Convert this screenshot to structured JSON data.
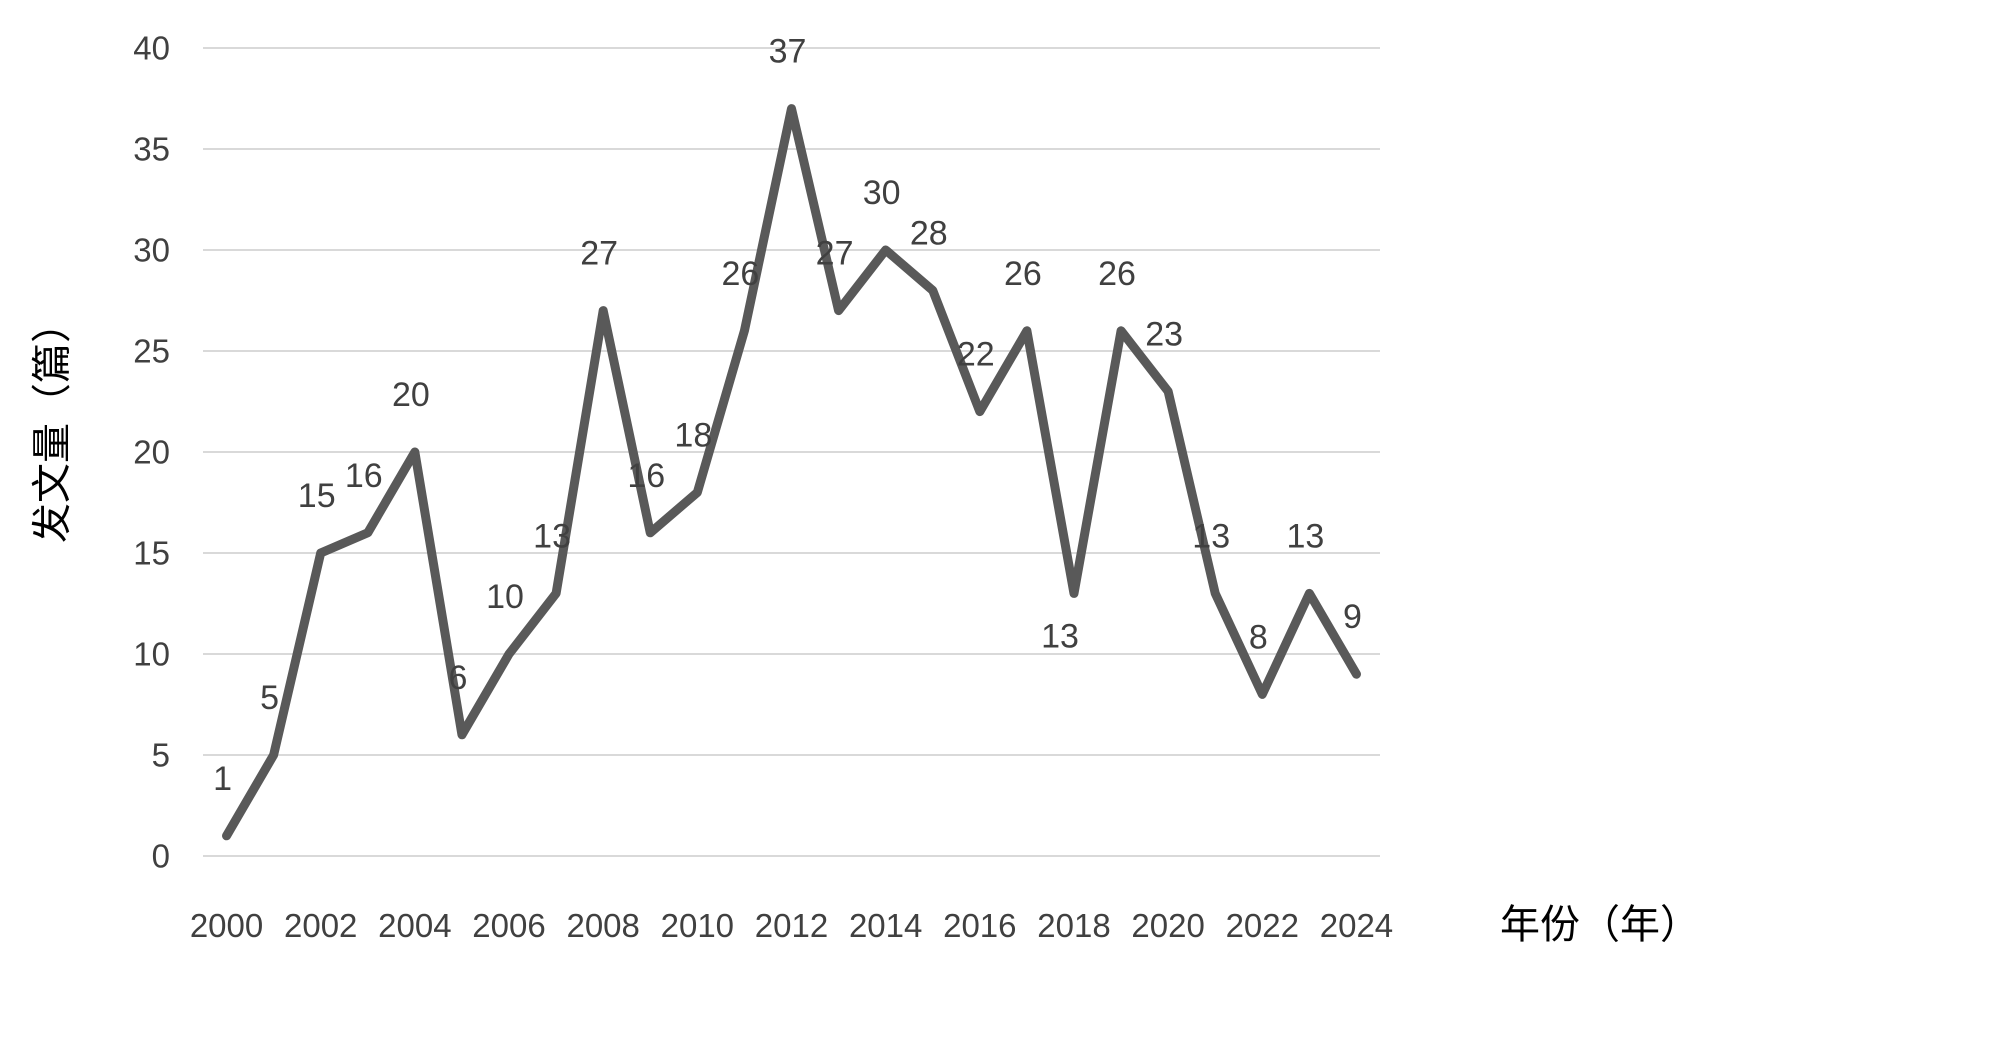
{
  "chart_data": {
    "type": "line",
    "title": "",
    "x": [
      2000,
      2001,
      2002,
      2003,
      2004,
      2005,
      2006,
      2007,
      2008,
      2009,
      2010,
      2011,
      2012,
      2013,
      2014,
      2015,
      2016,
      2017,
      2018,
      2019,
      2020,
      2021,
      2022,
      2023,
      2024
    ],
    "values": [
      1,
      5,
      15,
      16,
      20,
      6,
      10,
      13,
      27,
      16,
      18,
      26,
      37,
      27,
      30,
      28,
      22,
      26,
      13,
      26,
      23,
      13,
      8,
      13,
      9
    ],
    "xlabel": "年份（年）",
    "ylabel": "发文量（篇）",
    "ylim": [
      0,
      40
    ],
    "yticks": [
      0,
      5,
      10,
      15,
      20,
      25,
      30,
      35,
      40
    ],
    "xticks": [
      2000,
      2002,
      2004,
      2006,
      2008,
      2010,
      2012,
      2014,
      2016,
      2018,
      2020,
      2022,
      2024
    ],
    "grid": true,
    "legend": false,
    "data_labels_position": "above",
    "label_below_years": [
      2018
    ],
    "colors": {
      "line": "#595959",
      "grid": "#d9d9d9",
      "text": "#404040"
    }
  }
}
